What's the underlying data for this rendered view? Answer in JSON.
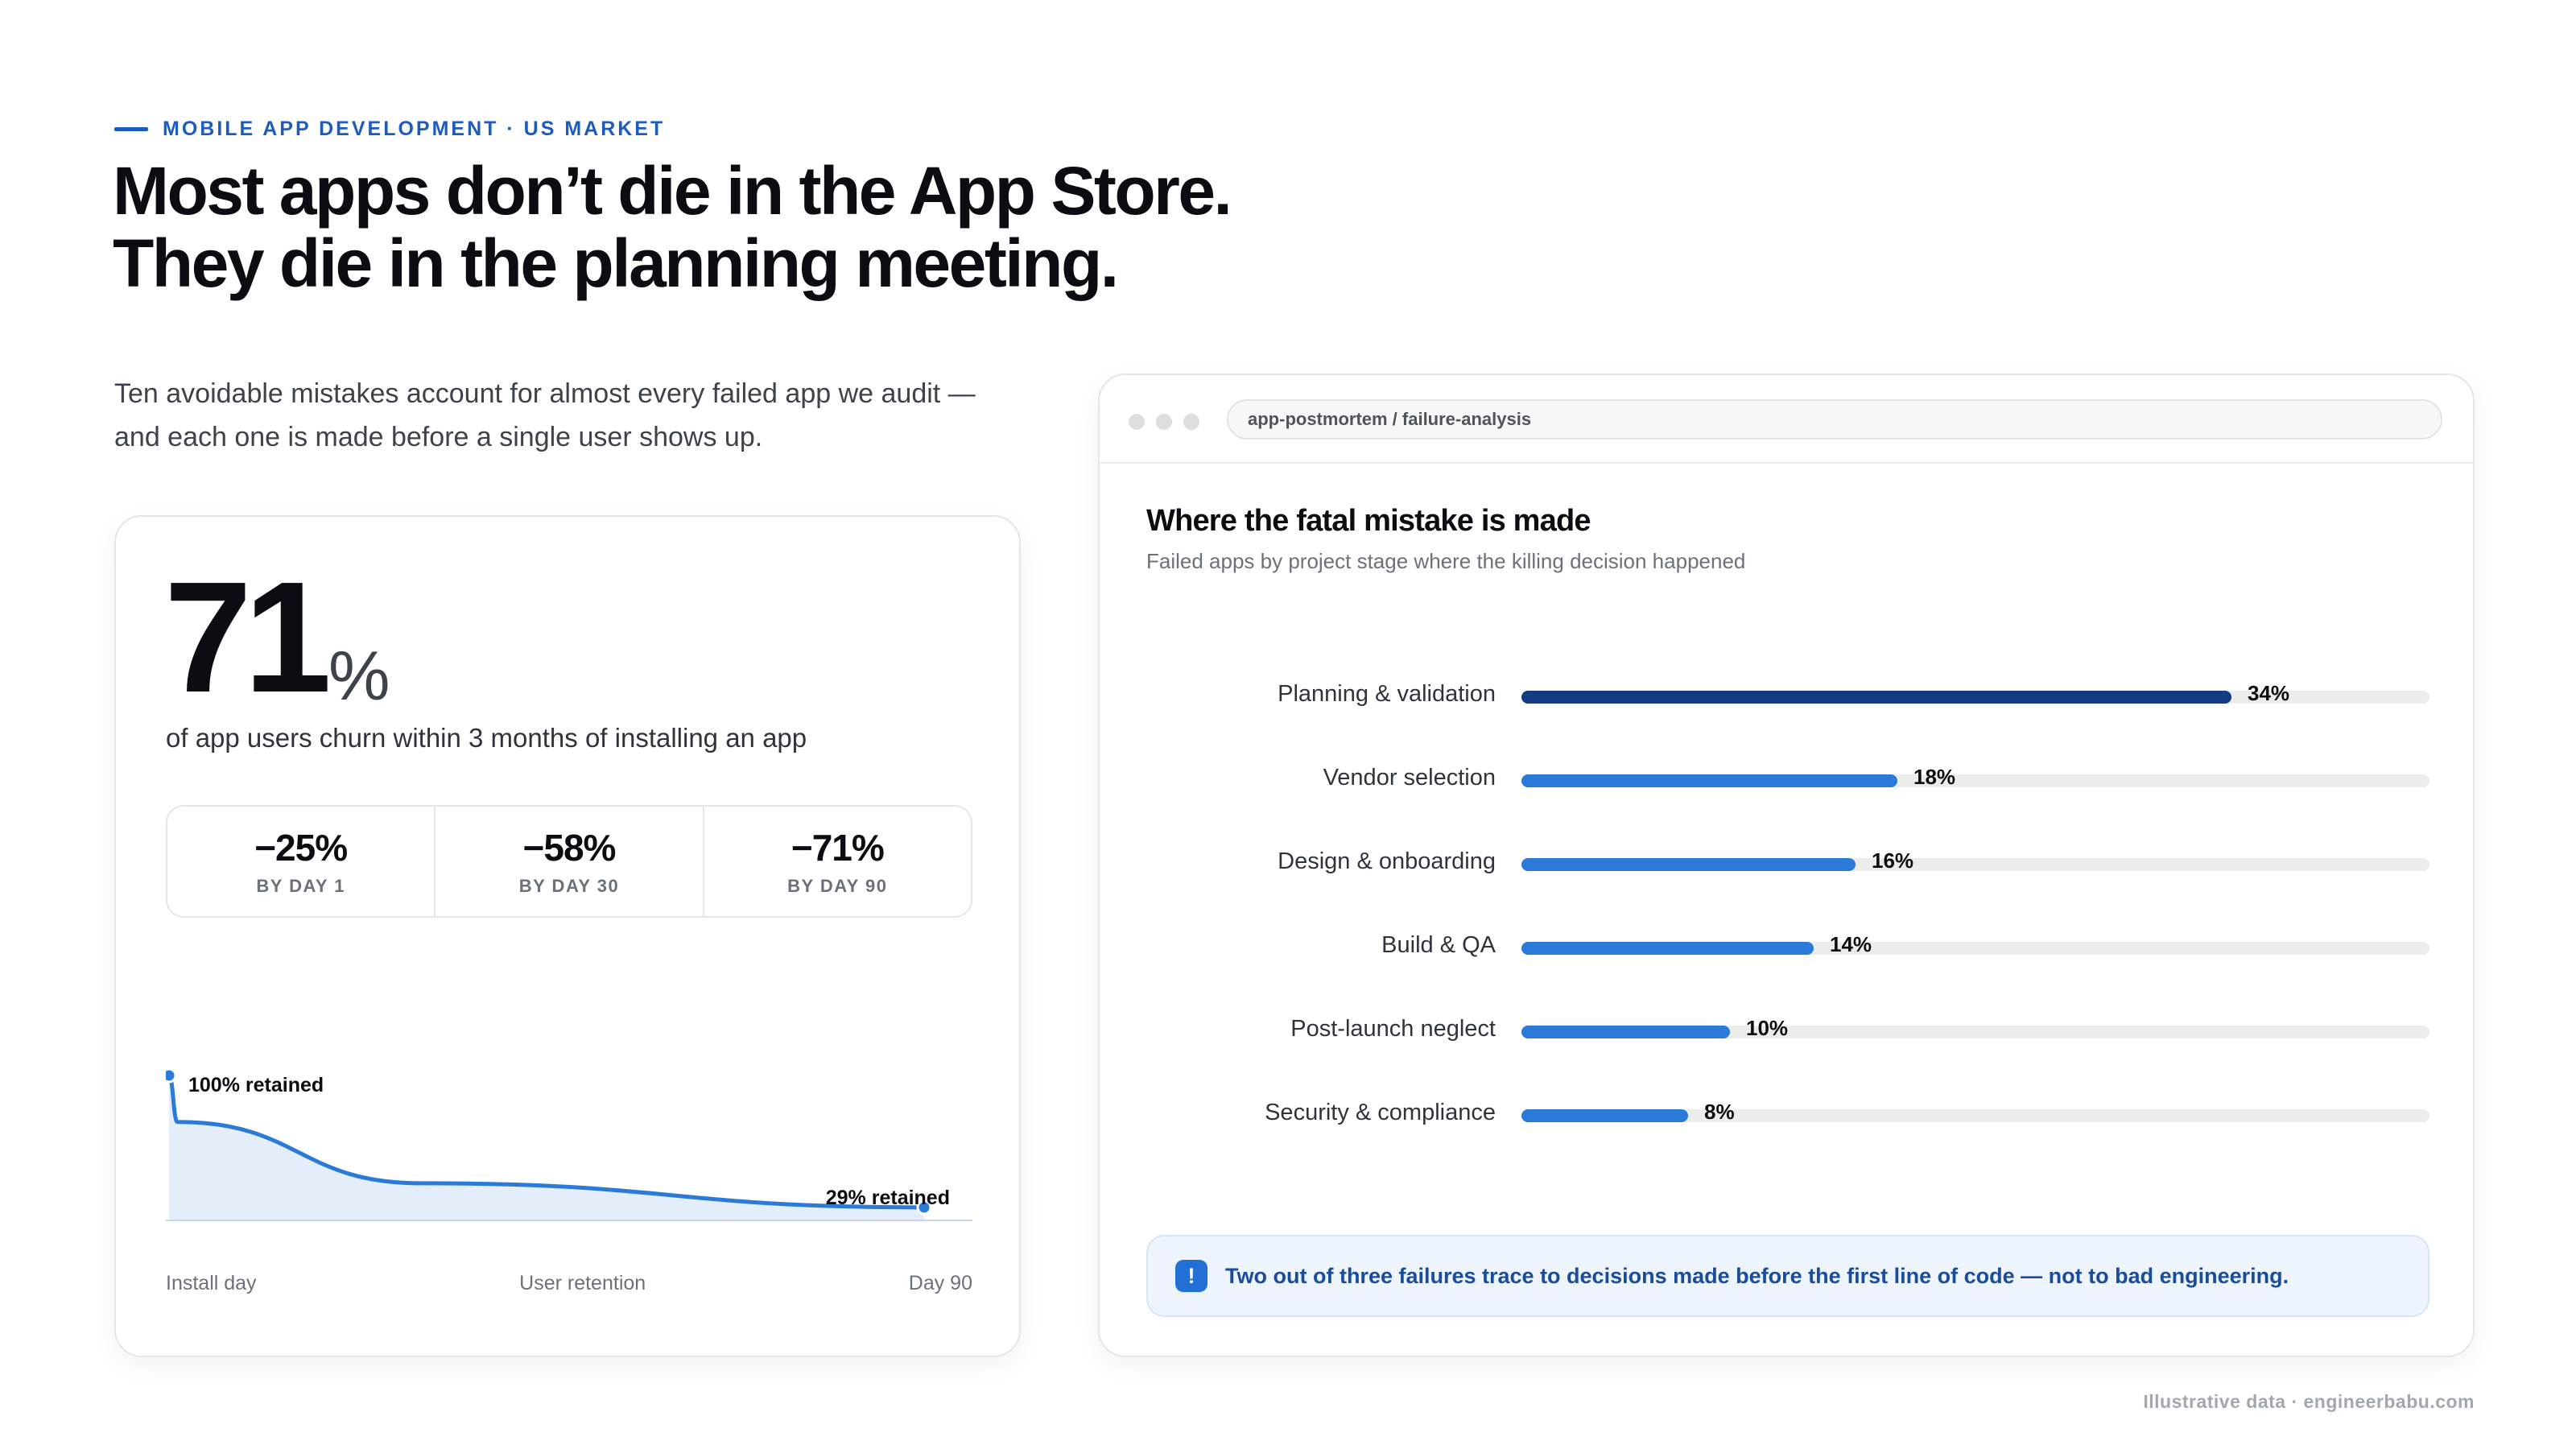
{
  "header": {
    "eyebrow": "MOBILE APP DEVELOPMENT · US MARKET",
    "headline_line1": "Most apps don’t die in the App Store.",
    "headline_line2": "They die in the planning meeting.",
    "intro": "Ten avoidable mistakes account for almost every failed app we audit — and each one is made before a single user shows up."
  },
  "churn_card": {
    "big_number": "71",
    "big_unit": "%",
    "caption": "of app users churn within 3 months of installing an app",
    "stats": [
      {
        "value": "−25%",
        "label": "BY DAY 1"
      },
      {
        "value": "−58%",
        "label": "BY DAY 30"
      },
      {
        "value": "−71%",
        "label": "BY DAY 90"
      }
    ],
    "retention_start_label": "100% retained",
    "retention_end_label": "29% retained",
    "axis_left": "Install day",
    "axis_center": "User retention",
    "axis_right": "Day 90",
    "accent_color": "#2b7ad8",
    "area_color": "#e4eefb"
  },
  "browser": {
    "url": "app-postmortem / failure-analysis"
  },
  "chart_data": [
    {
      "type": "line",
      "title": "",
      "xlabel": "User retention",
      "ylabel": "",
      "x": [
        "Install day",
        "Day 90"
      ],
      "series": [
        {
          "name": "",
          "x": [
            0,
            1,
            30,
            90
          ],
          "values": [
            100,
            75,
            42,
            29
          ]
        }
      ],
      "ylim": [
        0,
        100
      ],
      "area_fill": true,
      "grid": false
    },
    {
      "type": "bar",
      "orientation": "horizontal",
      "title": "Where the fatal mistake is made",
      "subtitle": "Failed apps by project stage where the killing decision happened",
      "categories": [
        "Planning & validation",
        "Vendor selection",
        "Design & onboarding",
        "Build & QA",
        "Post-launch neglect",
        "Security & compliance"
      ],
      "values": [
        34,
        18,
        16,
        14,
        10,
        8
      ],
      "value_labels": [
        "34%",
        "18%",
        "16%",
        "14%",
        "10%",
        "8%"
      ],
      "xlim": [
        0,
        43.5
      ],
      "highlight_index": 0,
      "highlight_color": "#123d80",
      "bar_color": "#2b7ad8",
      "track_color": "#ececeb",
      "grid": false
    }
  ],
  "note": {
    "icon": "!",
    "text": "Two out of three failures trace to decisions made before the first line of code — not to bad engineering."
  },
  "footer": "Illustrative data · engineerbabu.com"
}
